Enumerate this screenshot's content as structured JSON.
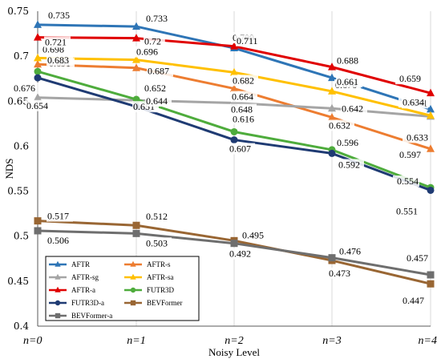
{
  "chart_data": {
    "type": "line",
    "title": "",
    "xlabel": "Noisy Level",
    "ylabel": "NDS",
    "categories": [
      "n=0",
      "n=1",
      "n=2",
      "n=3",
      "n=4"
    ],
    "ylim": [
      0.4,
      0.75
    ],
    "yticks": [
      "0.4",
      "0.45",
      "0.5",
      "0.55",
      "0.6",
      "0.65",
      "0.7",
      "0.75"
    ],
    "grid": "vertical",
    "legend_position": "bottom-left",
    "series": [
      {
        "name": "AFTR",
        "color": "#2e75b6",
        "marker": "triangle",
        "values": [
          0.735,
          0.733,
          0.709,
          0.676,
          0.641
        ],
        "labels": [
          "0.735",
          "0.733",
          "0.709",
          "0.676",
          "0.641"
        ]
      },
      {
        "name": "AFTR-s",
        "color": "#ed7d31",
        "marker": "triangle",
        "values": [
          0.691,
          0.687,
          0.664,
          0.632,
          0.597
        ],
        "labels": [
          "0.691",
          "0.687",
          "0.664",
          "0.632",
          "0.597"
        ]
      },
      {
        "name": "AFTR-sg",
        "color": "#a5a5a5",
        "marker": "triangle",
        "values": [
          0.654,
          0.651,
          0.648,
          0.642,
          0.633
        ],
        "labels": [
          "0.654",
          "0.651",
          "0.648",
          "0.642",
          "0.633"
        ]
      },
      {
        "name": "AFTR-sa",
        "color": "#ffc000",
        "marker": "triangle",
        "values": [
          0.698,
          0.696,
          0.682,
          0.661,
          0.634
        ],
        "labels": [
          "0.698",
          "0.696",
          "0.682",
          "0.661",
          "0.634"
        ]
      },
      {
        "name": "AFTR-a",
        "color": "#e00000",
        "marker": "triangle",
        "values": [
          0.721,
          0.72,
          0.711,
          0.688,
          0.659
        ],
        "labels": [
          "0.721",
          "0.72",
          "0.711",
          "0.688",
          "0.659"
        ]
      },
      {
        "name": "FUTR3D",
        "color": "#4eac3c",
        "marker": "circle",
        "values": [
          0.683,
          0.652,
          0.616,
          0.596,
          0.554
        ],
        "labels": [
          "0.683",
          "0.652",
          "0.616",
          "0.596",
          "0.554"
        ]
      },
      {
        "name": "FUTR3D-a",
        "color": "#1f3b73",
        "marker": "circle",
        "values": [
          0.676,
          0.644,
          0.607,
          0.592,
          0.551
        ],
        "labels": [
          "0.676",
          "0.644",
          "0.607",
          "0.592",
          "0.551"
        ]
      },
      {
        "name": "BEVFormer",
        "color": "#996633",
        "marker": "square",
        "values": [
          0.517,
          0.512,
          0.495,
          0.473,
          0.447
        ],
        "labels": [
          "0.517",
          "0.512",
          "0.495",
          "0.473",
          "0.447"
        ]
      },
      {
        "name": "BEVFormer-a",
        "color": "#6e6e6e",
        "marker": "square",
        "values": [
          0.506,
          0.503,
          0.492,
          0.476,
          0.457
        ],
        "labels": [
          "0.506",
          "0.503",
          "0.492",
          "0.476",
          "0.457"
        ]
      }
    ]
  }
}
